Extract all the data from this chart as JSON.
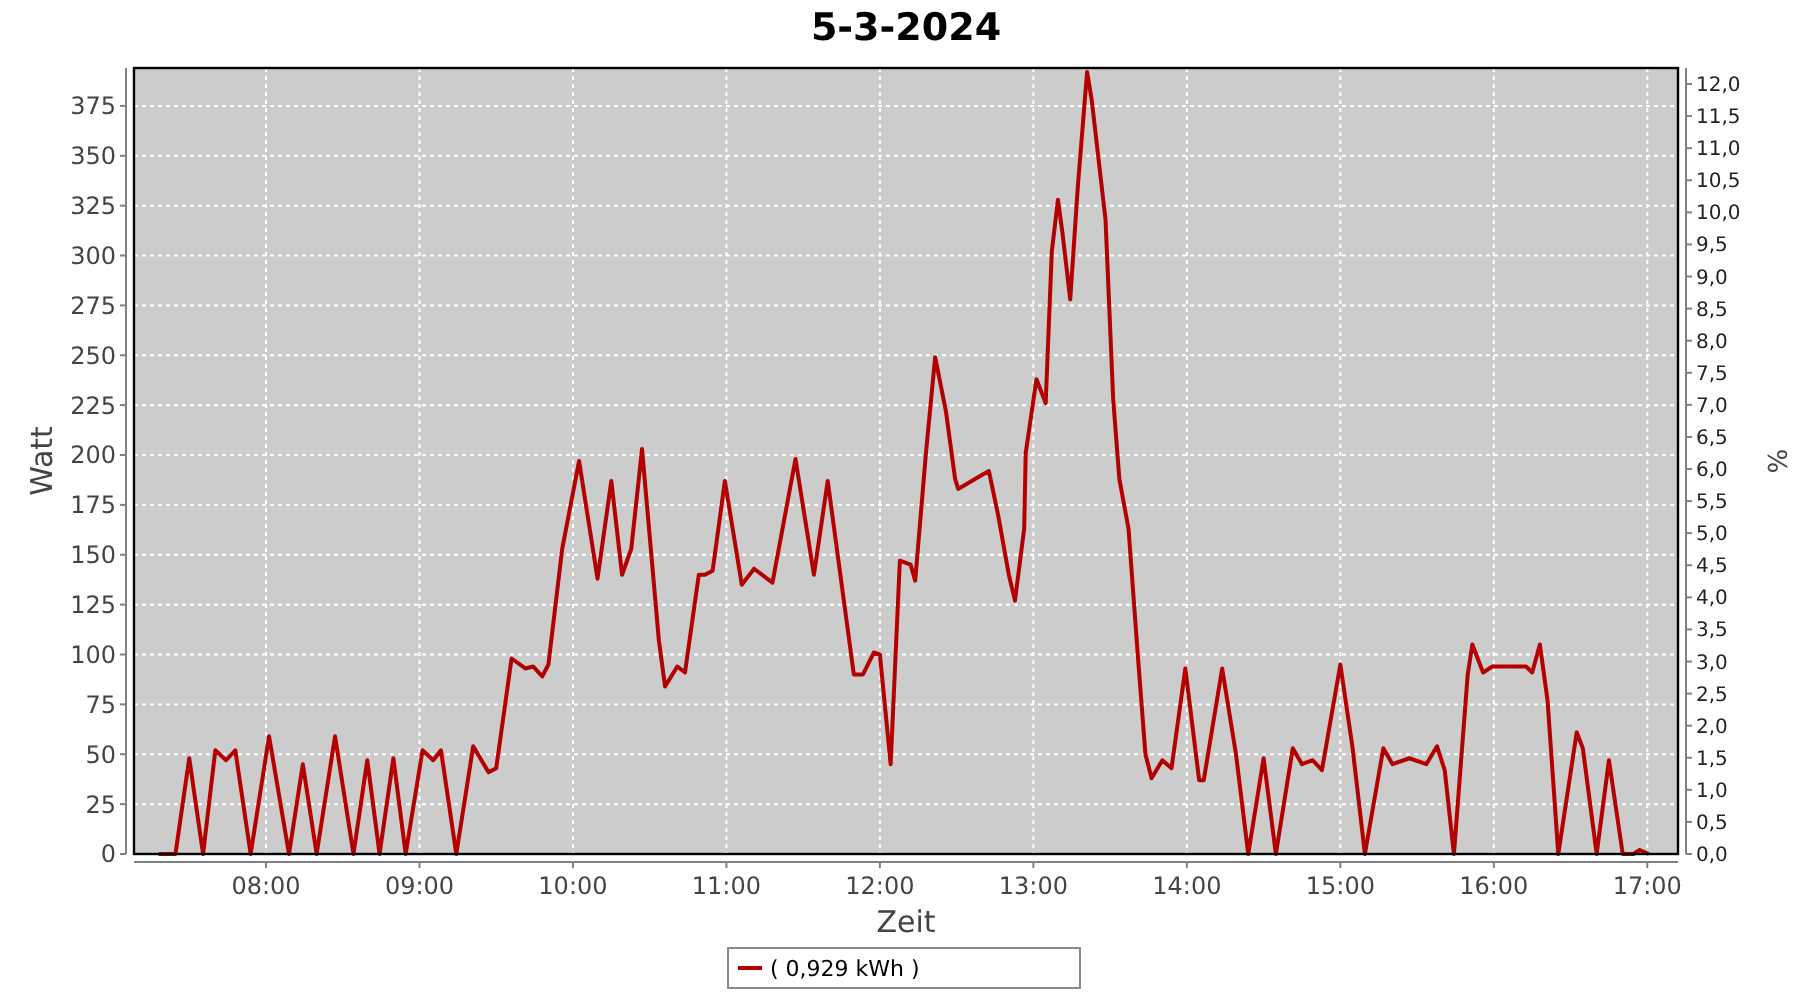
{
  "chart_data": {
    "type": "line",
    "title": "5-3-2024",
    "xlabel": "Zeit",
    "ylabel": "Watt",
    "y2label": "%",
    "xlim": [
      7.14,
      17.2
    ],
    "xticks": [
      {
        "value": 8,
        "label": "08:00"
      },
      {
        "value": 9,
        "label": "09:00"
      },
      {
        "value": 10,
        "label": "10:00"
      },
      {
        "value": 11,
        "label": "11:00"
      },
      {
        "value": 12,
        "label": "12:00"
      },
      {
        "value": 13,
        "label": "13:00"
      },
      {
        "value": 14,
        "label": "14:00"
      },
      {
        "value": 15,
        "label": "15:00"
      },
      {
        "value": 16,
        "label": "16:00"
      },
      {
        "value": 17,
        "label": "17:00"
      }
    ],
    "ylim": [
      0,
      394
    ],
    "yticks": [
      0,
      25,
      50,
      75,
      100,
      125,
      150,
      175,
      200,
      225,
      250,
      275,
      300,
      325,
      350,
      375
    ],
    "y2lim": [
      0,
      12.25
    ],
    "y2ticks": [
      {
        "value": 0,
        "label": "0,0"
      },
      {
        "value": 0.5,
        "label": "0,5"
      },
      {
        "value": 1,
        "label": "1,0"
      },
      {
        "value": 1.5,
        "label": "1,5"
      },
      {
        "value": 2,
        "label": "2,0"
      },
      {
        "value": 2.5,
        "label": "2,5"
      },
      {
        "value": 3,
        "label": "3,0"
      },
      {
        "value": 3.5,
        "label": "3,5"
      },
      {
        "value": 4,
        "label": "4,0"
      },
      {
        "value": 4.5,
        "label": "4,5"
      },
      {
        "value": 5,
        "label": "5,0"
      },
      {
        "value": 5.5,
        "label": "5,5"
      },
      {
        "value": 6,
        "label": "6,0"
      },
      {
        "value": 6.5,
        "label": "6,5"
      },
      {
        "value": 7,
        "label": "7,0"
      },
      {
        "value": 7.5,
        "label": "7,5"
      },
      {
        "value": 8,
        "label": "8,0"
      },
      {
        "value": 8.5,
        "label": "8,5"
      },
      {
        "value": 9,
        "label": "9,0"
      },
      {
        "value": 9.5,
        "label": "9,5"
      },
      {
        "value": 10,
        "label": "10,0"
      },
      {
        "value": 10.5,
        "label": "10,5"
      },
      {
        "value": 11,
        "label": "11,0"
      },
      {
        "value": 11.5,
        "label": "11,5"
      },
      {
        "value": 12,
        "label": "12,0"
      }
    ],
    "grid": true,
    "legend": "bottom",
    "line_style": "solid",
    "marker": "none",
    "series": [
      {
        "name": "( 0,929 kWh )",
        "color": "#b30000",
        "x": [
          7.3,
          7.41,
          7.5,
          7.59,
          7.67,
          7.74,
          7.8,
          7.9,
          8.02,
          8.15,
          8.24,
          8.33,
          8.45,
          8.57,
          8.66,
          8.74,
          8.83,
          8.91,
          9.02,
          9.09,
          9.14,
          9.24,
          9.35,
          9.45,
          9.5,
          9.6,
          9.69,
          9.74,
          9.8,
          9.84,
          9.93,
          10.04,
          10.16,
          10.25,
          10.32,
          10.38,
          10.45,
          10.56,
          10.6,
          10.68,
          10.73,
          10.82,
          10.86,
          10.91,
          10.99,
          11.1,
          11.18,
          11.3,
          11.45,
          11.57,
          11.66,
          11.73,
          11.83,
          11.89,
          11.96,
          12.0,
          12.07,
          12.13,
          12.2,
          12.23,
          12.3,
          12.36,
          12.43,
          12.49,
          12.51,
          12.62,
          12.71,
          12.77,
          12.84,
          12.88,
          12.94,
          12.95,
          13.02,
          13.08,
          13.12,
          13.16,
          13.19,
          13.24,
          13.29,
          13.35,
          13.38,
          13.47,
          13.52,
          13.56,
          13.62,
          13.68,
          13.73,
          13.77,
          13.84,
          13.9,
          13.99,
          14.08,
          14.11,
          14.23,
          14.32,
          14.4,
          14.5,
          14.58,
          14.69,
          14.75,
          14.82,
          14.88,
          15.0,
          15.08,
          15.16,
          15.28,
          15.34,
          15.45,
          15.56,
          15.63,
          15.68,
          15.74,
          15.83,
          15.86,
          15.93,
          15.99,
          16.21,
          16.25,
          16.3,
          16.35,
          16.42,
          16.54,
          16.58,
          16.67,
          16.75,
          16.84,
          16.91,
          16.95,
          17.01
        ],
        "values": [
          0,
          0,
          48,
          0,
          52,
          47,
          52,
          0,
          59,
          0,
          45,
          0,
          59,
          0,
          47,
          0,
          48,
          0,
          52,
          47,
          52,
          0,
          54,
          41,
          43,
          98,
          93,
          94,
          89,
          95,
          153,
          197,
          138,
          187,
          140,
          153,
          203,
          107,
          84,
          94,
          91,
          140,
          140,
          142,
          187,
          135,
          143,
          136,
          198,
          140,
          187,
          147,
          90,
          90,
          101,
          100,
          45,
          147,
          145,
          137,
          201,
          249,
          222,
          188,
          183,
          188,
          192,
          170,
          140,
          127,
          163,
          201,
          238,
          226,
          302,
          328,
          311,
          278,
          335,
          392,
          378,
          318,
          228,
          188,
          163,
          100,
          50,
          38,
          47,
          43,
          93,
          37,
          37,
          93,
          50,
          0,
          48,
          0,
          53,
          45,
          47,
          42,
          95,
          53,
          0,
          53,
          45,
          48,
          45,
          54,
          42,
          0,
          90,
          105,
          91,
          94,
          94,
          91,
          105,
          77,
          0,
          61,
          53,
          0,
          47,
          0,
          0,
          2,
          0
        ]
      }
    ]
  }
}
